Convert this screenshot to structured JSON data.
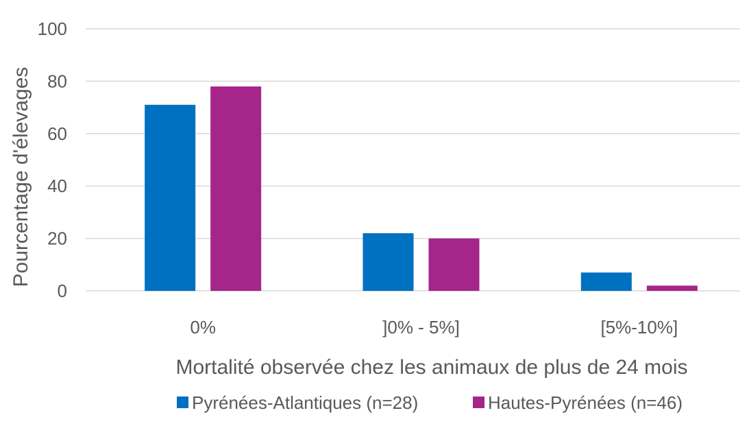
{
  "chart_data": {
    "type": "bar",
    "title": "",
    "xlabel": "Mortalité observée chez les animaux de plus de 24 mois",
    "ylabel": "Pourcentage d'élevages",
    "categories": [
      "0%",
      "]0% - 5%]",
      "[5%-10%]"
    ],
    "ylim": [
      0,
      100
    ],
    "yticks": [
      0,
      20,
      40,
      60,
      80,
      100
    ],
    "grid": true,
    "legend_position": "bottom",
    "series": [
      {
        "name": "Pyrénées-Atlantiques (n=28)",
        "color": "#0070c0",
        "values": [
          71,
          22,
          7
        ]
      },
      {
        "name": "Hautes-Pyrénées (n=46)",
        "color": "#a5258a",
        "values": [
          78,
          20,
          2
        ]
      }
    ]
  }
}
